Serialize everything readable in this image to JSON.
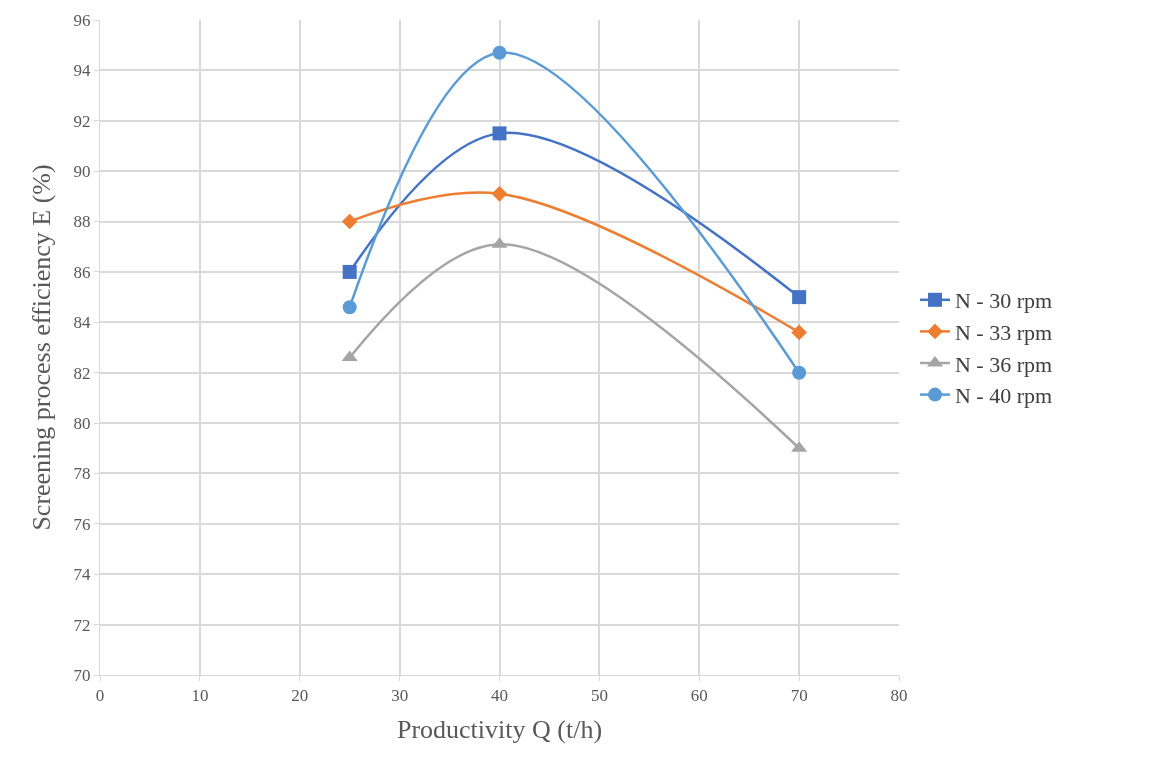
{
  "chart_data": {
    "type": "line",
    "xlabel": "Productivity Q (t/h)",
    "ylabel": "Screening process efficiency E (%)",
    "x": [
      25,
      40,
      70
    ],
    "series": [
      {
        "name": "N - 30 rpm",
        "color": "#4472c4",
        "marker": "square",
        "values": [
          86.0,
          91.5,
          85.0
        ]
      },
      {
        "name": "N - 33 rpm",
        "color": "#ed7d31",
        "marker": "diamond",
        "values": [
          88.0,
          89.1,
          83.6
        ]
      },
      {
        "name": "N - 36 rpm",
        "color": "#a5a5a5",
        "marker": "triangle",
        "values": [
          82.6,
          87.1,
          79.0
        ]
      },
      {
        "name": "N - 40 rpm",
        "color": "#5b9bd5",
        "marker": "circle",
        "values": [
          84.6,
          94.7,
          82.0
        ]
      }
    ],
    "xlim": [
      0,
      80
    ],
    "xticks": [
      0,
      10,
      20,
      30,
      40,
      50,
      60,
      70,
      80
    ],
    "ylim": [
      70,
      96
    ],
    "yticks": [
      70,
      72,
      74,
      76,
      78,
      80,
      82,
      84,
      86,
      88,
      90,
      92,
      94,
      96
    ],
    "grid": true,
    "legend": "right"
  }
}
